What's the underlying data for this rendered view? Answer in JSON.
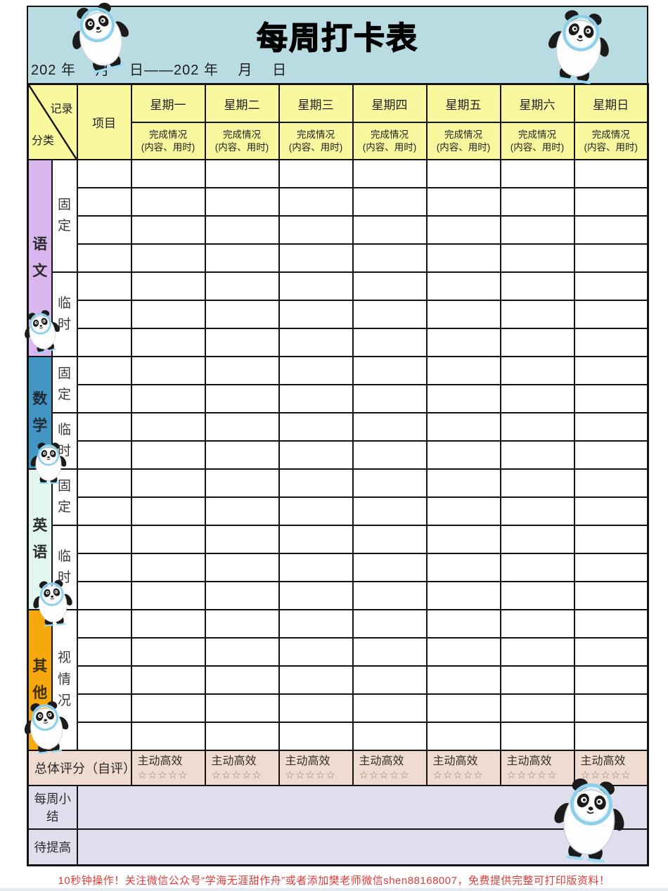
{
  "header": {
    "title": "每周打卡表",
    "date_line": "202 年　 月　 日——202 年　 月　 日"
  },
  "table": {
    "corner_top": "记录",
    "corner_bottom": "分类",
    "project_header": "项目",
    "completion_line1": "完成情况",
    "completion_line2": "(内容、用时)",
    "days": [
      "星期一",
      "星期二",
      "星期三",
      "星期四",
      "星期五",
      "星期六",
      "星期日"
    ],
    "sections": [
      {
        "key": "chinese",
        "name": "语文",
        "color": "#dab6ef",
        "text_color": "#2a2a2a",
        "subs": [
          {
            "label": "固定",
            "rows": 4
          },
          {
            "label": "临时",
            "rows": 3
          }
        ]
      },
      {
        "key": "math",
        "name": "数学",
        "color": "#4494c4",
        "text_color": "#1d2b36",
        "subs": [
          {
            "label": "固定",
            "rows": 2
          },
          {
            "label": "临时",
            "rows": 2
          }
        ]
      },
      {
        "key": "english",
        "name": "英语",
        "color": "#e1f6ef",
        "text_color": "#2a2a2a",
        "subs": [
          {
            "label": "固定",
            "rows": 2
          },
          {
            "label": "临时",
            "rows": 3
          }
        ]
      },
      {
        "key": "other",
        "name": "其他",
        "color": "#f6a90c",
        "text_color": "#3c2e06",
        "subs": [
          {
            "label": "视情况",
            "rows": 5
          }
        ]
      }
    ]
  },
  "rating": {
    "row_label": "总体评分（自评）",
    "cell_label": "主动高效",
    "stars": "☆☆☆☆☆"
  },
  "summary": {
    "weekly_label": "每周小结",
    "improve_label": "待提高"
  },
  "footer": {
    "notice": "10秒钟操作！关注微信公众号“学海无涯甜作舟”或者添加樊老师微信shen88168007，免费提供完整可打印版资料！"
  },
  "colors": {
    "header_bg": "#b9dce2",
    "day_header_bg": "#f9f89e",
    "chinese_bg": "#dab6ef",
    "math_bg": "#4494c4",
    "english_bg": "#e1f6ef",
    "other_bg": "#f6a90c",
    "rating_bg": "#f0dbd1",
    "summary_bg": "#dedeed",
    "border": "#141414",
    "footer_text": "#e03a3a"
  },
  "icons": {
    "mascot": "bing-dwen-dwen-panda-icon",
    "mascot_count": 7
  }
}
